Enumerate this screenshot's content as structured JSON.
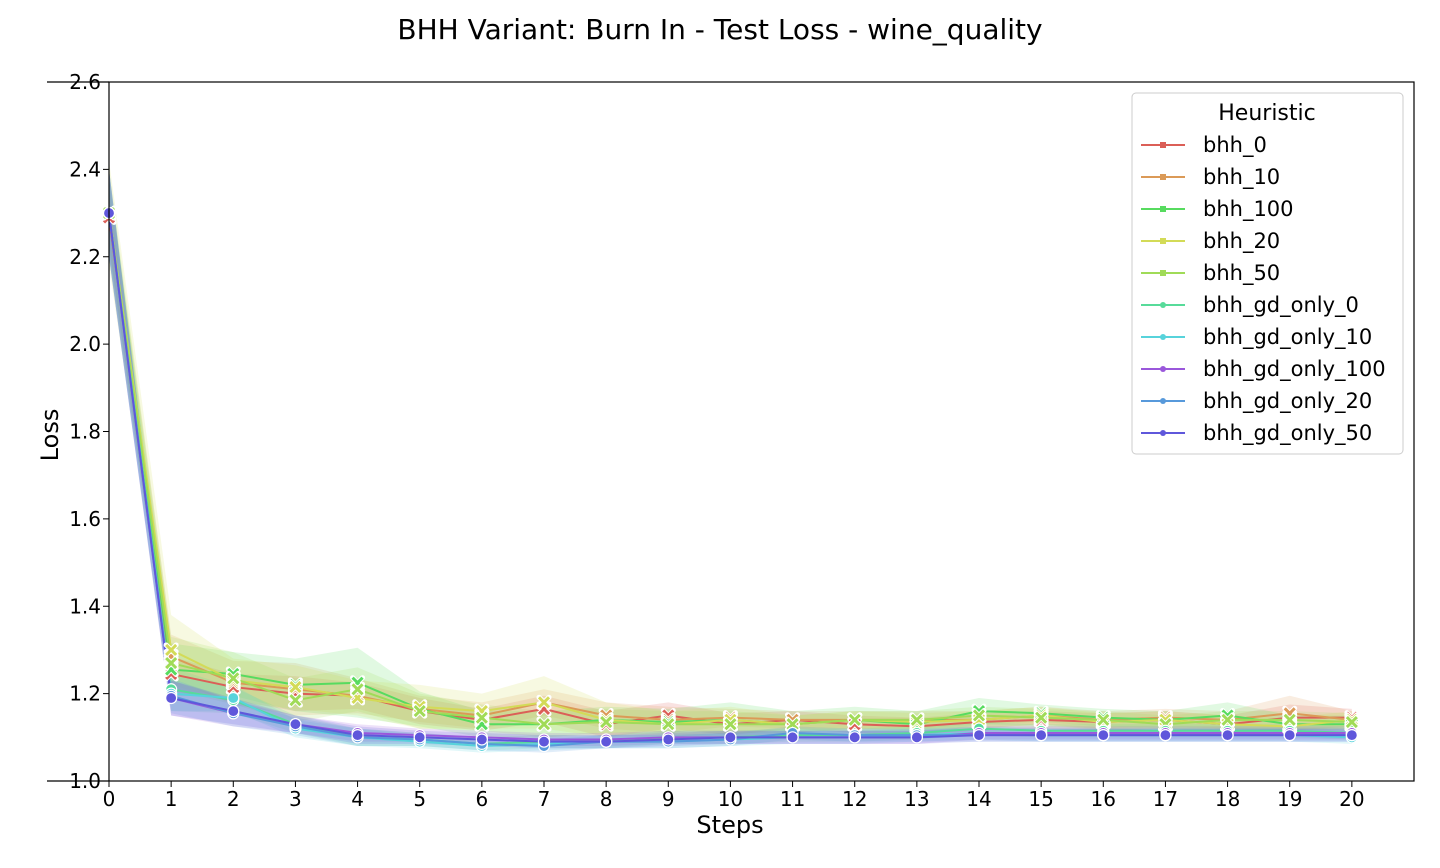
{
  "chart_data": {
    "type": "line",
    "title": "BHH Variant: Burn In - Test Loss - wine_quality",
    "xlabel": "Steps",
    "ylabel": "Loss",
    "xlim": [
      0,
      21
    ],
    "ylim": [
      1.0,
      2.6
    ],
    "x_ticks": [
      "0",
      "1",
      "2",
      "3",
      "4",
      "5",
      "6",
      "7",
      "8",
      "9",
      "10",
      "11",
      "12",
      "13",
      "14",
      "15",
      "16",
      "17",
      "18",
      "19",
      "20"
    ],
    "y_ticks": [
      "1.0",
      "1.2",
      "1.4",
      "1.6",
      "1.8",
      "2.0",
      "2.2",
      "2.4",
      "2.6"
    ],
    "grid": false,
    "legend": {
      "title": "Heuristic",
      "position": "top-right"
    },
    "x": [
      0,
      1,
      2,
      3,
      4,
      5,
      6,
      7,
      8,
      9,
      10,
      11,
      12,
      13,
      14,
      15,
      16,
      17,
      18,
      19,
      20
    ],
    "series": [
      {
        "name": "bhh_0",
        "color": "#db5f57",
        "marker": "x",
        "values": [
          2.29,
          1.245,
          1.215,
          1.2,
          1.195,
          1.16,
          1.14,
          1.165,
          1.13,
          1.15,
          1.13,
          1.14,
          1.13,
          1.125,
          1.135,
          1.14,
          1.135,
          1.14,
          1.13,
          1.145,
          1.145
        ],
        "band": [
          0.06,
          0.04,
          0.03,
          0.04,
          0.03,
          0.03,
          0.025,
          0.03,
          0.03,
          0.03,
          0.025,
          0.02,
          0.02,
          0.02,
          0.02,
          0.02,
          0.02,
          0.02,
          0.02,
          0.03,
          0.02
        ]
      },
      {
        "name": "bhh_10",
        "color": "#db9a57",
        "marker": "x",
        "values": [
          2.3,
          1.285,
          1.225,
          1.21,
          1.195,
          1.165,
          1.15,
          1.18,
          1.15,
          1.14,
          1.145,
          1.14,
          1.14,
          1.14,
          1.14,
          1.15,
          1.14,
          1.145,
          1.14,
          1.155,
          1.14
        ],
        "band": [
          0.08,
          0.05,
          0.05,
          0.06,
          0.04,
          0.03,
          0.03,
          0.03,
          0.03,
          0.03,
          0.02,
          0.02,
          0.02,
          0.02,
          0.02,
          0.02,
          0.02,
          0.02,
          0.02,
          0.04,
          0.02
        ]
      },
      {
        "name": "bhh_100",
        "color": "#57db5f",
        "marker": "x",
        "values": [
          2.3,
          1.255,
          1.245,
          1.22,
          1.225,
          1.165,
          1.13,
          1.13,
          1.14,
          1.135,
          1.14,
          1.13,
          1.14,
          1.13,
          1.16,
          1.155,
          1.145,
          1.14,
          1.15,
          1.13,
          1.13
        ],
        "band": [
          0.08,
          0.06,
          0.05,
          0.06,
          0.08,
          0.04,
          0.03,
          0.03,
          0.03,
          0.03,
          0.04,
          0.03,
          0.03,
          0.03,
          0.03,
          0.02,
          0.02,
          0.02,
          0.03,
          0.02,
          0.02
        ]
      },
      {
        "name": "bhh_20",
        "color": "#d3db57",
        "marker": "x",
        "values": [
          2.3,
          1.3,
          1.23,
          1.215,
          1.19,
          1.17,
          1.16,
          1.18,
          1.14,
          1.13,
          1.14,
          1.13,
          1.14,
          1.135,
          1.14,
          1.15,
          1.135,
          1.14,
          1.13,
          1.125,
          1.14
        ],
        "band": [
          0.12,
          0.08,
          0.05,
          0.05,
          0.04,
          0.05,
          0.04,
          0.06,
          0.04,
          0.03,
          0.03,
          0.02,
          0.02,
          0.02,
          0.02,
          0.02,
          0.02,
          0.02,
          0.02,
          0.02,
          0.02
        ]
      },
      {
        "name": "bhh_50",
        "color": "#a0db57",
        "marker": "x",
        "values": [
          2.3,
          1.27,
          1.235,
          1.185,
          1.21,
          1.16,
          1.145,
          1.13,
          1.135,
          1.13,
          1.13,
          1.13,
          1.14,
          1.14,
          1.15,
          1.145,
          1.14,
          1.13,
          1.14,
          1.14,
          1.135
        ],
        "band": [
          0.1,
          0.06,
          0.06,
          0.05,
          0.05,
          0.04,
          0.03,
          0.03,
          0.03,
          0.03,
          0.03,
          0.02,
          0.02,
          0.02,
          0.02,
          0.02,
          0.02,
          0.02,
          0.02,
          0.02,
          0.02
        ]
      },
      {
        "name": "bhh_gd_only_0",
        "color": "#57db9a",
        "marker": "o",
        "values": [
          2.3,
          1.21,
          1.185,
          1.13,
          1.1,
          1.095,
          1.085,
          1.09,
          1.09,
          1.1,
          1.1,
          1.105,
          1.105,
          1.11,
          1.12,
          1.115,
          1.115,
          1.115,
          1.115,
          1.115,
          1.11
        ],
        "band": [
          0.1,
          0.05,
          0.03,
          0.02,
          0.02,
          0.015,
          0.015,
          0.015,
          0.015,
          0.015,
          0.015,
          0.015,
          0.015,
          0.015,
          0.015,
          0.015,
          0.015,
          0.015,
          0.015,
          0.015,
          0.015
        ]
      },
      {
        "name": "bhh_gd_only_10",
        "color": "#57d3db",
        "marker": "o",
        "values": [
          2.3,
          1.2,
          1.19,
          1.12,
          1.1,
          1.09,
          1.08,
          1.085,
          1.09,
          1.09,
          1.095,
          1.1,
          1.1,
          1.105,
          1.11,
          1.105,
          1.105,
          1.105,
          1.105,
          1.105,
          1.1
        ],
        "band": [
          0.1,
          0.04,
          0.03,
          0.02,
          0.02,
          0.015,
          0.015,
          0.015,
          0.015,
          0.015,
          0.015,
          0.015,
          0.015,
          0.015,
          0.015,
          0.015,
          0.015,
          0.015,
          0.015,
          0.015,
          0.015
        ]
      },
      {
        "name": "bhh_gd_only_100",
        "color": "#9a57db",
        "marker": "o",
        "values": [
          2.3,
          1.19,
          1.155,
          1.13,
          1.11,
          1.105,
          1.1,
          1.095,
          1.095,
          1.1,
          1.1,
          1.1,
          1.1,
          1.1,
          1.11,
          1.11,
          1.11,
          1.11,
          1.11,
          1.11,
          1.11
        ],
        "band": [
          0.1,
          0.04,
          0.03,
          0.02,
          0.02,
          0.015,
          0.015,
          0.015,
          0.015,
          0.015,
          0.015,
          0.015,
          0.015,
          0.015,
          0.015,
          0.015,
          0.015,
          0.015,
          0.015,
          0.015,
          0.015
        ]
      },
      {
        "name": "bhh_gd_only_20",
        "color": "#5799db",
        "marker": "o",
        "values": [
          2.3,
          1.195,
          1.155,
          1.125,
          1.1,
          1.095,
          1.085,
          1.08,
          1.09,
          1.09,
          1.095,
          1.11,
          1.105,
          1.105,
          1.105,
          1.105,
          1.105,
          1.105,
          1.105,
          1.105,
          1.105
        ],
        "band": [
          0.1,
          0.04,
          0.03,
          0.02,
          0.02,
          0.015,
          0.015,
          0.015,
          0.015,
          0.015,
          0.015,
          0.015,
          0.015,
          0.015,
          0.015,
          0.015,
          0.015,
          0.015,
          0.015,
          0.015,
          0.015
        ]
      },
      {
        "name": "bhh_gd_only_50",
        "color": "#5f57db",
        "marker": "o",
        "values": [
          2.3,
          1.19,
          1.16,
          1.13,
          1.105,
          1.1,
          1.095,
          1.09,
          1.09,
          1.095,
          1.1,
          1.1,
          1.1,
          1.1,
          1.105,
          1.105,
          1.105,
          1.105,
          1.105,
          1.105,
          1.105
        ],
        "band": [
          0.1,
          0.04,
          0.03,
          0.02,
          0.02,
          0.015,
          0.015,
          0.015,
          0.015,
          0.015,
          0.015,
          0.015,
          0.015,
          0.015,
          0.015,
          0.015,
          0.015,
          0.015,
          0.015,
          0.015,
          0.015
        ]
      }
    ]
  }
}
